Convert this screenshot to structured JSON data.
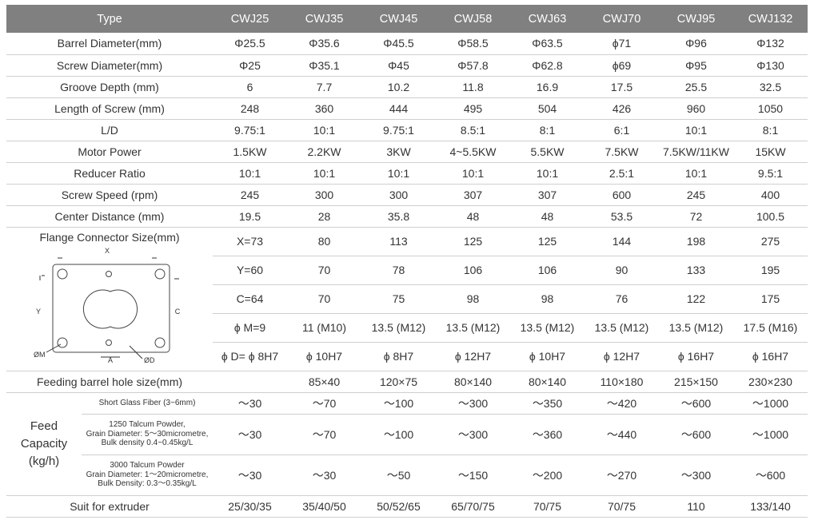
{
  "header": {
    "type_label": "Type",
    "models": [
      "CWJ25",
      "CWJ35",
      "CWJ45",
      "CWJ58",
      "CWJ63",
      "CWJ70",
      "CWJ95",
      "CWJ132"
    ]
  },
  "rows": [
    {
      "label": "Barrel Diameter(mm)",
      "values": [
        "Φ25.5",
        "Φ35.6",
        "Φ45.5",
        "Φ58.5",
        "Φ63.5",
        "ϕ71",
        "Φ96",
        "Φ132"
      ]
    },
    {
      "label": "Screw Diameter(mm)",
      "values": [
        "Φ25",
        "Φ35.1",
        "Φ45",
        "Φ57.8",
        "Φ62.8",
        "ϕ69",
        "Φ95",
        "Φ130"
      ]
    },
    {
      "label": "Groove Depth (mm)",
      "values": [
        "6",
        "7.7",
        "10.2",
        "11.8",
        "16.9",
        "17.5",
        "25.5",
        "32.5"
      ]
    },
    {
      "label": "Length of Screw (mm)",
      "values": [
        "248",
        "360",
        "444",
        "495",
        "504",
        "426",
        "960",
        "1050"
      ]
    },
    {
      "label": "L/D",
      "values": [
        "9.75:1",
        "10:1",
        "9.75:1",
        "8.5:1",
        "8:1",
        "6:1",
        "10:1",
        "8:1"
      ]
    },
    {
      "label": "Motor Power",
      "values": [
        "1.5KW",
        "2.2KW",
        "3KW",
        "4~5.5KW",
        "5.5KW",
        "7.5KW",
        "7.5KW/11KW",
        "15KW"
      ]
    },
    {
      "label": "Reducer Ratio",
      "values": [
        "10:1",
        "10:1",
        "10:1",
        "10:1",
        "10:1",
        "2.5:1",
        "10:1",
        "9.5:1"
      ]
    },
    {
      "label": "Screw Speed (rpm)",
      "values": [
        "245",
        "300",
        "300",
        "307",
        "307",
        "600",
        "245",
        "400"
      ]
    },
    {
      "label": "Center Distance (mm)",
      "values": [
        "19.5",
        "28",
        "35.8",
        "48",
        "48",
        "53.5",
        "72",
        "100.5"
      ]
    }
  ],
  "flange": {
    "label": "Flange Connector Size(mm)",
    "diagram_labels": {
      "x": "X",
      "y": "Y",
      "c": "C",
      "m": "ØM",
      "a": "A",
      "d": "ØD"
    },
    "rows": [
      {
        "param": "X=73",
        "values": [
          "80",
          "113",
          "125",
          "125",
          "144",
          "198",
          "275"
        ]
      },
      {
        "param": "Y=60",
        "values": [
          "70",
          "78",
          "106",
          "106",
          "90",
          "133",
          "195"
        ]
      },
      {
        "param": "C=64",
        "values": [
          "70",
          "75",
          "98",
          "98",
          "76",
          "122",
          "175"
        ]
      },
      {
        "param": "ϕ M=9",
        "values": [
          "11 (M10)",
          "13.5 (M12)",
          "13.5 (M12)",
          "13.5 (M12)",
          "13.5 (M12)",
          "13.5 (M12)",
          "17.5 (M16)"
        ]
      },
      {
        "param": "ϕ D= ϕ 8H7",
        "values": [
          "ϕ 10H7",
          "ϕ 8H7",
          "ϕ 12H7",
          "ϕ 10H7",
          "ϕ 12H7",
          "ϕ 16H7",
          "ϕ 16H7"
        ]
      }
    ]
  },
  "feeding_hole": {
    "label": "Feeding barrel hole size(mm)",
    "values": [
      "",
      "85×40",
      "120×75",
      "80×140",
      "80×140",
      "110×180",
      "215×150",
      "230×230"
    ]
  },
  "feed_capacity": {
    "label_lines": [
      "Feed",
      "Capacity",
      "(kg/h)"
    ],
    "rows": [
      {
        "material_lines": [
          "Short Glass Fiber (3~6mm)"
        ],
        "values": [
          "～30",
          "～70",
          "～100",
          "～300",
          "～350",
          "～420",
          "～600",
          "～1000"
        ]
      },
      {
        "material_lines": [
          "1250 Talcum Powder,",
          "Grain Diameter: 5～30micrometre,",
          "Bulk density 0.4~0.45kg/L"
        ],
        "values": [
          "～30",
          "～70",
          "～100",
          "～300",
          "～360",
          "～440",
          "～600",
          "～1000"
        ]
      },
      {
        "material_lines": [
          "3000 Talcum Powder",
          "Grain Diameter: 1～20micrometre,",
          "Bulk Density: 0.3～0.35kg/L"
        ],
        "values": [
          "～30",
          "～30",
          "～50",
          "～150",
          "～200",
          "～270",
          "～300",
          "～600"
        ]
      }
    ]
  },
  "suit": {
    "label": "Suit for extruder",
    "values": [
      "25/30/35",
      "35/40/50",
      "50/52/65",
      "65/70/75",
      "70/75",
      "70/75",
      "110",
      "133/140"
    ]
  }
}
